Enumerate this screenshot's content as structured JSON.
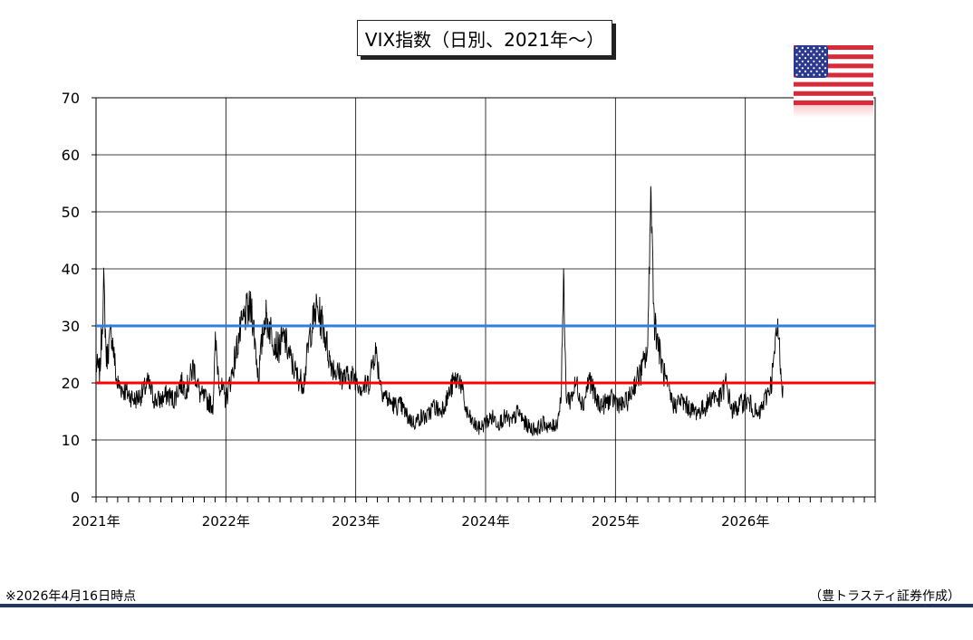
{
  "title": "VIX指数（日別、2021年～）",
  "note": "※2026年4月16日時点",
  "credit": "（豊トラスティ証券作成）",
  "colors": {
    "series": "#000000",
    "line_30": "#2f7fe0",
    "line_20": "#ff0000",
    "grid": "#000000",
    "rule": "#1f3864"
  },
  "flag_icon": "us-flag-icon",
  "chart_data": {
    "type": "line",
    "title": "VIX指数（日別、2021年～）",
    "xlabel": "",
    "ylabel": "",
    "ylim": [
      0,
      70
    ],
    "yticks": [
      0,
      10,
      20,
      30,
      40,
      50,
      60,
      70
    ],
    "xlim": [
      2021.0,
      2027.0
    ],
    "xticks": [
      2021,
      2022,
      2023,
      2024,
      2025,
      2026
    ],
    "xtick_labels": [
      "2021年",
      "2022年",
      "2023年",
      "2024年",
      "2025年",
      "2026年"
    ],
    "grid": true,
    "reference_lines": [
      {
        "value": 30,
        "color": "#2f7fe0"
      },
      {
        "value": 20,
        "color": "#ff0000"
      }
    ],
    "series": [
      {
        "x": [
          2021.0,
          2021.03,
          2021.06,
          2021.08,
          2021.12,
          2021.16,
          2021.2,
          2021.25,
          2021.3,
          2021.35,
          2021.4,
          2021.45,
          2021.5,
          2021.55,
          2021.6,
          2021.65,
          2021.7,
          2021.75,
          2021.8,
          2021.85,
          2021.9,
          2021.92,
          2021.95,
          2022.0,
          2022.05,
          2022.1,
          2022.15,
          2022.2,
          2022.25,
          2022.3,
          2022.35,
          2022.4,
          2022.45,
          2022.5,
          2022.55,
          2022.6,
          2022.65,
          2022.7,
          2022.75,
          2022.8,
          2022.85,
          2022.9,
          2022.95,
          2023.0,
          2023.05,
          2023.1,
          2023.15,
          2023.2,
          2023.25,
          2023.3,
          2023.35,
          2023.4,
          2023.45,
          2023.5,
          2023.55,
          2023.6,
          2023.65,
          2023.7,
          2023.75,
          2023.8,
          2023.85,
          2023.9,
          2023.95,
          2024.0,
          2024.05,
          2024.1,
          2024.15,
          2024.2,
          2024.25,
          2024.3,
          2024.35,
          2024.4,
          2024.45,
          2024.5,
          2024.55,
          2024.58,
          2024.6,
          2024.62,
          2024.65,
          2024.7,
          2024.75,
          2024.8,
          2024.85,
          2024.9,
          2024.95,
          2025.0,
          2025.05,
          2025.1,
          2025.15,
          2025.2,
          2025.25,
          2025.27,
          2025.3,
          2025.35,
          2025.4,
          2025.45,
          2025.5,
          2025.55,
          2025.6,
          2025.65,
          2025.7,
          2025.75,
          2025.8,
          2025.85,
          2025.9,
          2025.95,
          2026.0,
          2026.05,
          2026.1,
          2026.15,
          2026.2,
          2026.25,
          2026.29
        ],
        "values": [
          23,
          22,
          37,
          24,
          29,
          20,
          19,
          18,
          17,
          18,
          20,
          17,
          17,
          18,
          17,
          20,
          19,
          23,
          18,
          17,
          16,
          27,
          20,
          17,
          22,
          28,
          32,
          33,
          21,
          32,
          29,
          26,
          28,
          24,
          21,
          20,
          29,
          33,
          30,
          24,
          22,
          21,
          21,
          21,
          19,
          20,
          26,
          19,
          17,
          16,
          16,
          14,
          13,
          14,
          14,
          16,
          15,
          17,
          20,
          21,
          15,
          13,
          12,
          13,
          14,
          13,
          14,
          13,
          15,
          13,
          12,
          12,
          13,
          12,
          13,
          17,
          38,
          18,
          17,
          20,
          16,
          21,
          17,
          16,
          17,
          17,
          16,
          17,
          20,
          22,
          26,
          55,
          31,
          24,
          19,
          16,
          17,
          16,
          15,
          15,
          16,
          18,
          17,
          20,
          15,
          16,
          17,
          16,
          14,
          17,
          20,
          30,
          18
        ]
      }
    ]
  }
}
